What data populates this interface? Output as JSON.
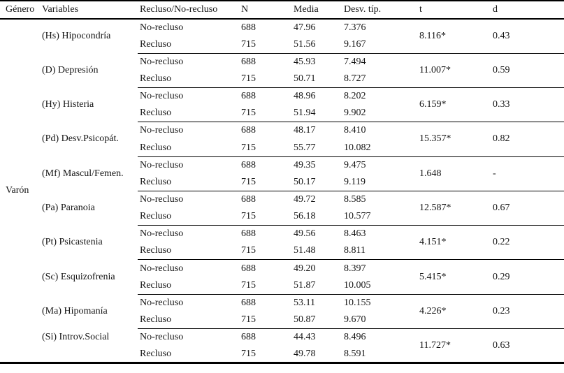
{
  "table": {
    "headers": {
      "genero": "Género",
      "variables": "Variables",
      "grupo": "Recluso/No-recluso",
      "n": "N",
      "media": "Media",
      "desv": "Desv. típ.",
      "t": "t",
      "d": "d"
    },
    "gender_label": "Varón",
    "groups": [
      {
        "variable": "(Hs) Hipocondría",
        "rows": [
          {
            "group": "No-recluso",
            "n": "688",
            "media": "47.96",
            "desv": "7.376"
          },
          {
            "group": "Recluso",
            "n": "715",
            "media": "51.56",
            "desv": "9.167"
          }
        ],
        "t": "8.116*",
        "d": "0.43"
      },
      {
        "variable": "(D) Depresión",
        "rows": [
          {
            "group": "No-recluso",
            "n": "688",
            "media": "45.93",
            "desv": "7.494"
          },
          {
            "group": "Recluso",
            "n": "715",
            "media": "50.71",
            "desv": "8.727"
          }
        ],
        "t": "11.007*",
        "d": "0.59"
      },
      {
        "variable": "(Hy) Histeria",
        "rows": [
          {
            "group": "No-recluso",
            "n": "688",
            "media": "48.96",
            "desv": "8.202"
          },
          {
            "group": "Recluso",
            "n": "715",
            "media": "51.94",
            "desv": "9.902"
          }
        ],
        "t": "6.159*",
        "d": "0.33"
      },
      {
        "variable": "(Pd) Desv.Psicopát.",
        "rows": [
          {
            "group": "No-recluso",
            "n": "688",
            "media": "48.17",
            "desv": "8.410"
          },
          {
            "group": "Recluso",
            "n": "715",
            "media": "55.77",
            "desv": "10.082"
          }
        ],
        "t": "15.357*",
        "d": "0.82"
      },
      {
        "variable": "(Mf) Mascul/Femen.",
        "rows": [
          {
            "group": "No-recluso",
            "n": "688",
            "media": "49.35",
            "desv": "9.475"
          },
          {
            "group": "Recluso",
            "n": "715",
            "media": "50.17",
            "desv": "9.119"
          }
        ],
        "t": "1.648",
        "d": "-"
      },
      {
        "variable": "(Pa) Paranoia",
        "rows": [
          {
            "group": "No-recluso",
            "n": "688",
            "media": "49.72",
            "desv": "8.585"
          },
          {
            "group": "Recluso",
            "n": "715",
            "media": "56.18",
            "desv": "10.577"
          }
        ],
        "t": "12.587*",
        "d": "0.67"
      },
      {
        "variable": "(Pt) Psicastenia",
        "rows": [
          {
            "group": "No-recluso",
            "n": "688",
            "media": "49.56",
            "desv": "8.463"
          },
          {
            "group": "Recluso",
            "n": "715",
            "media": "51.48",
            "desv": "8.811"
          }
        ],
        "t": "4.151*",
        "d": "0.22"
      },
      {
        "variable": "(Sc) Esquizofrenia",
        "rows": [
          {
            "group": "No-recluso",
            "n": "688",
            "media": "49.20",
            "desv": "8.397"
          },
          {
            "group": "Recluso",
            "n": "715",
            "media": "51.87",
            "desv": "10.005"
          }
        ],
        "t": "5.415*",
        "d": "0.29"
      },
      {
        "variable": "(Ma) Hipomanía",
        "rows": [
          {
            "group": "No-recluso",
            "n": "688",
            "media": "53.11",
            "desv": "10.155"
          },
          {
            "group": "Recluso",
            "n": "715",
            "media": "50.87",
            "desv": "9.670"
          }
        ],
        "t": "4.226*",
        "d": "0.23"
      },
      {
        "variable": "(Si) Introv.Social",
        "rows": [
          {
            "group": "No-recluso",
            "n": "688",
            "media": "44.43",
            "desv": "8.496"
          },
          {
            "group": "Recluso",
            "n": "715",
            "media": "49.78",
            "desv": "8.591"
          }
        ],
        "t": "11.727*",
        "d": "0.63"
      }
    ],
    "colors": {
      "text": "#141414",
      "line": "#000000",
      "background": "#ffffff"
    }
  }
}
